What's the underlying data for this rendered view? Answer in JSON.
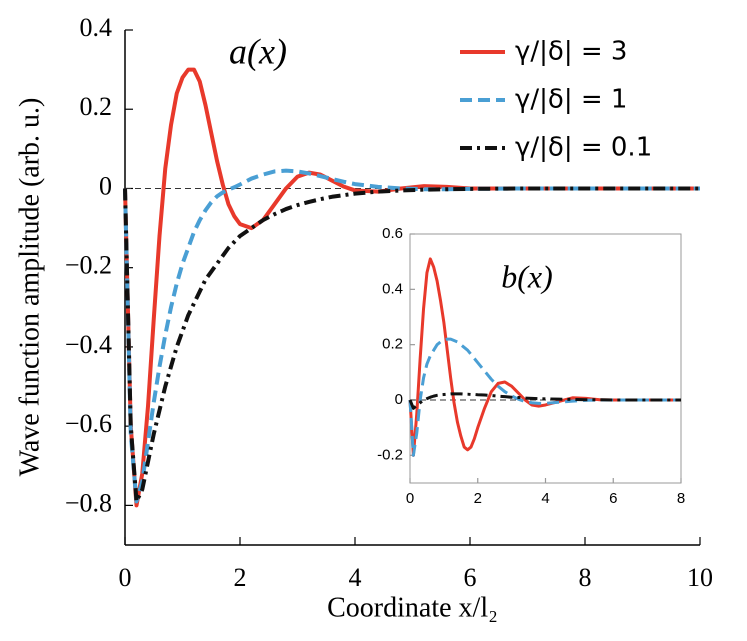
{
  "chart_data": [
    {
      "type": "line",
      "annotation": "a(x)",
      "x_label": "Coordinate x/l₂",
      "y_label": "Wave function amplitude (arb. u.)",
      "x": [
        0,
        0.1,
        0.2,
        0.3,
        0.4,
        0.5,
        0.6,
        0.7,
        0.8,
        0.9,
        1.0,
        1.1,
        1.2,
        1.3,
        1.4,
        1.5,
        1.6,
        1.7,
        1.8,
        1.9,
        2.0,
        2.2,
        2.4,
        2.6,
        2.8,
        3.0,
        3.2,
        3.4,
        3.6,
        3.8,
        4.0,
        4.4,
        4.8,
        5.2,
        5.6,
        6.0,
        7,
        8,
        9,
        10
      ],
      "series": [
        {
          "name": "γ/|δ| = 3",
          "color": "#e8392b",
          "dash": "solid",
          "values": [
            0,
            -0.6,
            -0.8,
            -0.72,
            -0.55,
            -0.33,
            -0.12,
            0.05,
            0.16,
            0.24,
            0.28,
            0.3,
            0.3,
            0.27,
            0.21,
            0.14,
            0.07,
            0.01,
            -0.04,
            -0.07,
            -0.09,
            -0.1,
            -0.08,
            -0.04,
            0,
            0.03,
            0.04,
            0.035,
            0.02,
            0.005,
            -0.005,
            -0.008,
            0,
            0.006,
            0.004,
            0,
            0,
            0,
            0,
            0
          ]
        },
        {
          "name": "γ/|δ| = 1",
          "color": "#4a9fd4",
          "dash": "dashed",
          "values": [
            0,
            -0.62,
            -0.79,
            -0.74,
            -0.64,
            -0.54,
            -0.45,
            -0.37,
            -0.3,
            -0.24,
            -0.19,
            -0.15,
            -0.11,
            -0.08,
            -0.055,
            -0.035,
            -0.02,
            -0.01,
            -0.003,
            0.003,
            0.01,
            0.025,
            0.035,
            0.043,
            0.045,
            0.043,
            0.038,
            0.031,
            0.024,
            0.017,
            0.011,
            0.004,
            0,
            -0.002,
            -0.002,
            -0.001,
            0,
            0,
            0,
            0
          ]
        },
        {
          "name": "γ/|δ| = 0.1",
          "color": "#111111",
          "dash": "dashdot",
          "values": [
            0,
            -0.6,
            -0.79,
            -0.76,
            -0.69,
            -0.62,
            -0.56,
            -0.5,
            -0.45,
            -0.4,
            -0.36,
            -0.32,
            -0.29,
            -0.26,
            -0.23,
            -0.21,
            -0.19,
            -0.17,
            -0.15,
            -0.135,
            -0.12,
            -0.1,
            -0.08,
            -0.065,
            -0.052,
            -0.042,
            -0.034,
            -0.027,
            -0.021,
            -0.017,
            -0.013,
            -0.008,
            -0.005,
            -0.003,
            -0.002,
            -0.001,
            0,
            0,
            0,
            0
          ]
        }
      ],
      "xlim": [
        0,
        10
      ],
      "xticks": [
        0,
        2,
        4,
        6,
        8,
        10
      ],
      "ylim": [
        -0.9,
        0.4
      ],
      "yticks": [
        {
          "value": -0.8,
          "label": "−0.8"
        },
        {
          "value": -0.6,
          "label": "−0.6"
        },
        {
          "value": -0.4,
          "label": "−0.4"
        },
        {
          "value": -0.2,
          "label": "−0.2"
        },
        0,
        0.2,
        0.4
      ],
      "zero_line": true,
      "legend": "upper right",
      "frame": false
    },
    {
      "type": "line",
      "annotation": "b(x)",
      "x": [
        0,
        0.1,
        0.2,
        0.3,
        0.4,
        0.5,
        0.6,
        0.7,
        0.8,
        0.9,
        1.0,
        1.1,
        1.2,
        1.3,
        1.4,
        1.5,
        1.6,
        1.7,
        1.8,
        1.9,
        2.0,
        2.2,
        2.4,
        2.6,
        2.8,
        3.0,
        3.2,
        3.4,
        3.6,
        3.8,
        4.0,
        4.4,
        4.8,
        5.2,
        5.6,
        6.0,
        7,
        8
      ],
      "series": [
        {
          "color": "#e8392b",
          "dash": "solid",
          "values": [
            0,
            -0.2,
            -0.05,
            0.15,
            0.33,
            0.46,
            0.51,
            0.48,
            0.43,
            0.36,
            0.28,
            0.18,
            0.08,
            -0.01,
            -0.08,
            -0.13,
            -0.17,
            -0.18,
            -0.17,
            -0.14,
            -0.1,
            -0.03,
            0.03,
            0.06,
            0.065,
            0.05,
            0.025,
            0,
            -0.018,
            -0.022,
            -0.018,
            -0.005,
            0.008,
            0.006,
            0.001,
            0,
            0,
            0
          ]
        },
        {
          "color": "#4a9fd4",
          "dash": "dashed",
          "values": [
            0,
            -0.2,
            -0.12,
            0,
            0.08,
            0.13,
            0.16,
            0.18,
            0.2,
            0.21,
            0.215,
            0.22,
            0.22,
            0.215,
            0.21,
            0.2,
            0.19,
            0.18,
            0.165,
            0.15,
            0.135,
            0.105,
            0.075,
            0.05,
            0.03,
            0.015,
            0.003,
            -0.006,
            -0.01,
            -0.012,
            -0.012,
            -0.008,
            -0.004,
            -0.001,
            0,
            0,
            0,
            0
          ]
        },
        {
          "color": "#111111",
          "dash": "dashdot",
          "values": [
            0,
            -0.03,
            -0.02,
            -0.01,
            0,
            0.005,
            0.01,
            0.014,
            0.017,
            0.019,
            0.02,
            0.021,
            0.022,
            0.022,
            0.022,
            0.022,
            0.021,
            0.021,
            0.02,
            0.02,
            0.019,
            0.018,
            0.016,
            0.014,
            0.012,
            0.01,
            0.009,
            0.007,
            0.006,
            0.005,
            0.004,
            0.003,
            0.002,
            0.001,
            0.001,
            0,
            0,
            0
          ]
        }
      ],
      "xlim": [
        0,
        8
      ],
      "xticks": [
        0,
        2,
        4,
        6,
        8
      ],
      "ylim": [
        -0.3,
        0.6
      ],
      "yticks": [
        {
          "value": -0.2,
          "label": "-0.2"
        },
        0,
        0.2,
        0.4,
        0.6
      ],
      "zero_line": true,
      "frame": true
    }
  ]
}
